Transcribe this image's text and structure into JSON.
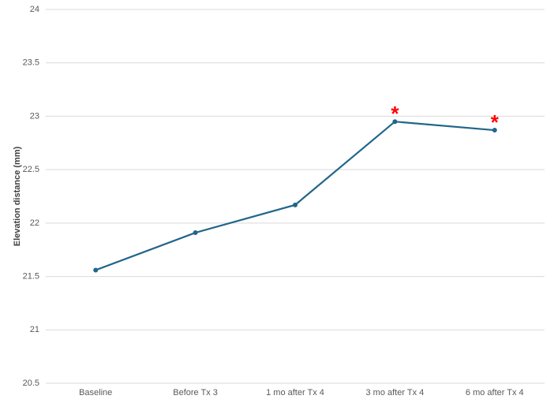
{
  "chart_data": {
    "type": "line",
    "y_label": "Elevation distance (mm)",
    "categories": [
      "Baseline",
      "Before Tx 3",
      "1 mo after Tx 4",
      "3 mo after Tx 4",
      "6 mo after Tx 4"
    ],
    "values": [
      21.56,
      21.91,
      22.17,
      22.95,
      22.87
    ],
    "color": "#20668a",
    "ylim": [
      20.5,
      24
    ],
    "yticks": [
      20.5,
      21,
      21.5,
      22,
      22.5,
      23,
      23.5,
      24
    ],
    "grid": true,
    "annotations": [
      {
        "text": "*",
        "category": "3 mo after Tx 4"
      },
      {
        "text": "*",
        "category": "6 mo after Tx 4"
      }
    ]
  }
}
